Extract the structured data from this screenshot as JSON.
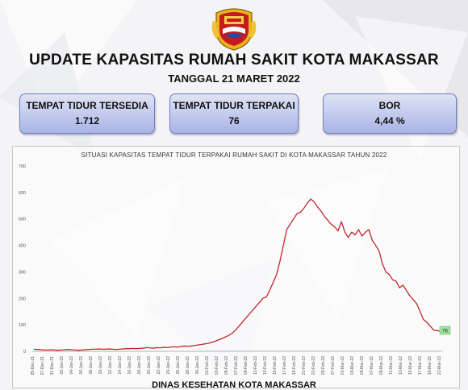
{
  "header": {
    "title": "UPDATE KAPASITAS RUMAH SAKIT KOTA MAKASSAR",
    "date_line": "TANGGAL 21 MARET 2022"
  },
  "cards": [
    {
      "label": "TEMPAT TIDUR TERSEDIA",
      "value": "1.712"
    },
    {
      "label": "TEMPAT TIDUR TERPAKAI",
      "value": "76"
    },
    {
      "label": "BOR",
      "value": "4,44 %"
    }
  ],
  "footer": {
    "text": "DINAS KESEHATAN KOTA MAKASSAR"
  },
  "colors": {
    "line": "#c0272d",
    "card_border": "#6f7fc4",
    "label_highlight": "#9fe29f"
  },
  "icons": {
    "logo": "makassar-city-seal-icon"
  },
  "chart_data": {
    "type": "line",
    "title": "SITUASI KAPASITAS TEMPAT TIDUR TERPAKAI RUMAH SAKIT DI KOTA MAKASSAR TAHUN 2022",
    "xlabel": "",
    "ylabel": "",
    "ylim": [
      0,
      700
    ],
    "yticks": [
      0,
      100,
      200,
      300,
      400,
      500,
      600,
      700
    ],
    "grid": false,
    "x_tick_labels": [
      "25-Dec-21",
      "27-Dec-21",
      "31-Dec-21",
      "02-Jan-22",
      "04-Jan-22",
      "06-Jan-22",
      "08-Jan-22",
      "10-Jan-22",
      "12-Jan-22",
      "14-Jan-22",
      "16-Jan-22",
      "18-Jan-22",
      "20-Jan-22",
      "22-Jan-22",
      "24-Jan-22",
      "26-Jan-22",
      "28-Jan-22",
      "30-Jan-22",
      "01-Feb-22",
      "03-Feb-22",
      "05-Feb-22",
      "07-Feb-22",
      "09-Feb-22",
      "11-Feb-22",
      "13-Feb-22",
      "15-Feb-22",
      "17-Feb-22",
      "19-Feb-22",
      "21-Feb-22",
      "23-Feb-22",
      "25-Feb-22",
      "27-Feb-22",
      "01-Mar-22",
      "03-Mar-22",
      "05-Mar-22",
      "07-Mar-22",
      "09-Mar-22",
      "11-Mar-22",
      "13-Mar-22",
      "15-Mar-22",
      "17-Mar-22",
      "19-Mar-22",
      "21-Mar-22"
    ],
    "series": [
      {
        "values": [
          8,
          7,
          6,
          5,
          5,
          6,
          5,
          4,
          5,
          6,
          7,
          6,
          5,
          4,
          5,
          6,
          7,
          8,
          8,
          9,
          8,
          8,
          9,
          8,
          7,
          8,
          9,
          10,
          10,
          11,
          10,
          11,
          12,
          14,
          13,
          12,
          14,
          13,
          15,
          14,
          16,
          17,
          16,
          18,
          20,
          19,
          20,
          22,
          24,
          26,
          28,
          30,
          34,
          38,
          43,
          48,
          54,
          60,
          68,
          80,
          95,
          110,
          125,
          140,
          155,
          170,
          185,
          200,
          205,
          230,
          260,
          290,
          340,
          400,
          460,
          480,
          500,
          520,
          525,
          540,
          560,
          575,
          565,
          545,
          530,
          510,
          495,
          480,
          470,
          455,
          490,
          450,
          430,
          450,
          440,
          460,
          435,
          450,
          460,
          420,
          400,
          380,
          330,
          300,
          290,
          270,
          265,
          240,
          250,
          230,
          210,
          195,
          180,
          150,
          120,
          110,
          95,
          80,
          78,
          76
        ]
      }
    ],
    "last_value_label": "76"
  }
}
